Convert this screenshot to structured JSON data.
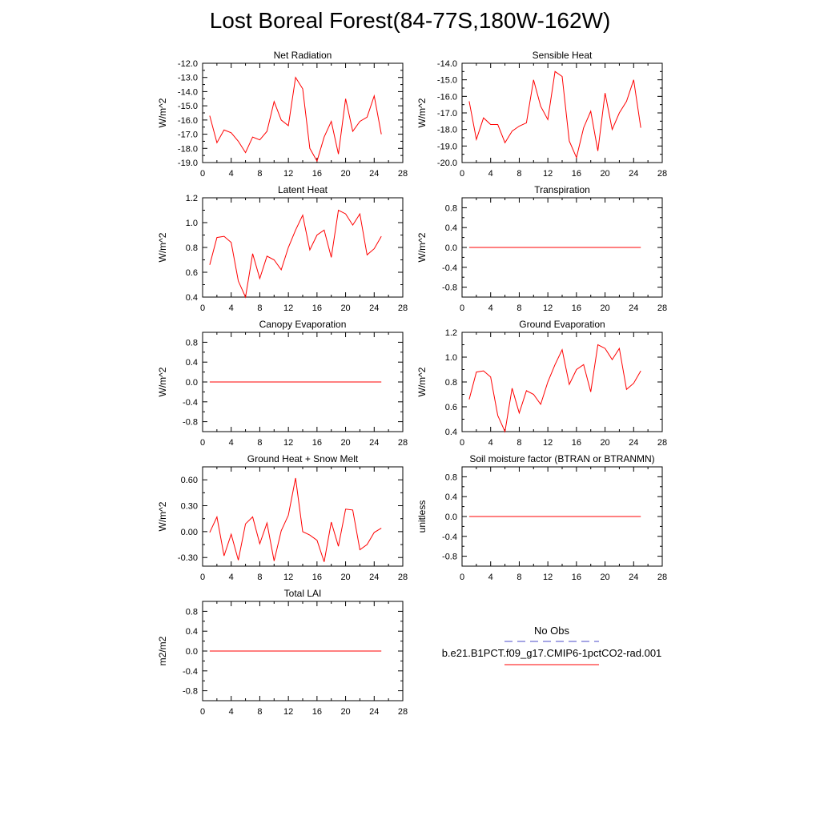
{
  "title": "Lost Boreal Forest(84-77S,180W-162W)",
  "legend": {
    "entries": [
      {
        "label": "No Obs",
        "color": "#4b4bc8",
        "style": "dashed"
      },
      {
        "label": "b.e21.B1PCT.f09_g17.CMIP6-1pctCO2-rad.001",
        "color": "#ff0000",
        "style": "solid"
      }
    ]
  },
  "chart_data": [
    {
      "type": "line",
      "title": "Net Radiation",
      "ylabel": "W/m^2",
      "xlim": [
        0,
        28
      ],
      "xticks": [
        0,
        4,
        8,
        12,
        16,
        20,
        24,
        28
      ],
      "ylim": [
        -19.0,
        -12.0
      ],
      "yticks": [
        -19.0,
        -18.0,
        -17.0,
        -16.0,
        -15.0,
        -14.0,
        -13.0,
        -12.0
      ],
      "ydec": 1,
      "series": [
        {
          "color": "#ff0000",
          "x": [
            1,
            2,
            3,
            4,
            5,
            6,
            7,
            8,
            9,
            10,
            11,
            12,
            13,
            14,
            15,
            16,
            17,
            18,
            19,
            20,
            21,
            22,
            23,
            24,
            25
          ],
          "y": [
            -15.7,
            -17.6,
            -16.7,
            -16.9,
            -17.5,
            -18.3,
            -17.2,
            -17.4,
            -16.8,
            -14.7,
            -16.0,
            -16.4,
            -13.0,
            -13.8,
            -18.0,
            -18.9,
            -17.2,
            -16.1,
            -18.4,
            -14.5,
            -16.8,
            -16.1,
            -15.8,
            -14.3,
            -17.0
          ]
        }
      ]
    },
    {
      "type": "line",
      "title": "Sensible Heat",
      "ylabel": "W/m^2",
      "xlim": [
        0,
        28
      ],
      "xticks": [
        0,
        4,
        8,
        12,
        16,
        20,
        24,
        28
      ],
      "ylim": [
        -20.0,
        -14.0
      ],
      "yticks": [
        -20.0,
        -19.0,
        -18.0,
        -17.0,
        -16.0,
        -15.0,
        -14.0
      ],
      "ydec": 1,
      "series": [
        {
          "color": "#ff0000",
          "x": [
            1,
            2,
            3,
            4,
            5,
            6,
            7,
            8,
            9,
            10,
            11,
            12,
            13,
            14,
            15,
            16,
            17,
            18,
            19,
            20,
            21,
            22,
            23,
            24,
            25
          ],
          "y": [
            -16.3,
            -18.6,
            -17.3,
            -17.7,
            -17.7,
            -18.8,
            -18.1,
            -17.8,
            -17.6,
            -15.0,
            -16.6,
            -17.4,
            -14.5,
            -14.8,
            -18.7,
            -19.7,
            -17.9,
            -16.9,
            -19.3,
            -15.8,
            -18.0,
            -17.0,
            -16.3,
            -15.0,
            -17.9
          ]
        }
      ]
    },
    {
      "type": "line",
      "title": "Latent Heat",
      "ylabel": "W/m^2",
      "xlim": [
        0,
        28
      ],
      "xticks": [
        0,
        4,
        8,
        12,
        16,
        20,
        24,
        28
      ],
      "ylim": [
        0.4,
        1.2
      ],
      "yticks": [
        0.4,
        0.6,
        0.8,
        1.0,
        1.2
      ],
      "ydec": 1,
      "series": [
        {
          "color": "#ff0000",
          "x": [
            1,
            2,
            3,
            4,
            5,
            6,
            7,
            8,
            9,
            10,
            11,
            12,
            13,
            14,
            15,
            16,
            17,
            18,
            19,
            20,
            21,
            22,
            23,
            24,
            25
          ],
          "y": [
            0.66,
            0.88,
            0.89,
            0.84,
            0.53,
            0.4,
            0.75,
            0.55,
            0.73,
            0.7,
            0.62,
            0.8,
            0.94,
            1.06,
            0.78,
            0.9,
            0.94,
            0.72,
            1.1,
            1.07,
            0.98,
            1.07,
            0.74,
            0.79,
            0.89
          ]
        }
      ]
    },
    {
      "type": "line",
      "title": "Transpiration",
      "ylabel": "W/m^2",
      "xlim": [
        0,
        28
      ],
      "xticks": [
        0,
        4,
        8,
        12,
        16,
        20,
        24,
        28
      ],
      "ylim": [
        -1.0,
        1.0
      ],
      "yticks": [
        -0.8,
        -0.4,
        0.0,
        0.4,
        0.8
      ],
      "ydec": 1,
      "series": [
        {
          "color": "#ff0000",
          "x": [
            1,
            2,
            3,
            4,
            5,
            6,
            7,
            8,
            9,
            10,
            11,
            12,
            13,
            14,
            15,
            16,
            17,
            18,
            19,
            20,
            21,
            22,
            23,
            24,
            25
          ],
          "y": [
            0,
            0,
            0,
            0,
            0,
            0,
            0,
            0,
            0,
            0,
            0,
            0,
            0,
            0,
            0,
            0,
            0,
            0,
            0,
            0,
            0,
            0,
            0,
            0,
            0
          ]
        }
      ]
    },
    {
      "type": "line",
      "title": "Canopy Evaporation",
      "ylabel": "W/m^2",
      "xlim": [
        0,
        28
      ],
      "xticks": [
        0,
        4,
        8,
        12,
        16,
        20,
        24,
        28
      ],
      "ylim": [
        -1.0,
        1.0
      ],
      "yticks": [
        -0.8,
        -0.4,
        0.0,
        0.4,
        0.8
      ],
      "ydec": 1,
      "series": [
        {
          "color": "#ff0000",
          "x": [
            1,
            2,
            3,
            4,
            5,
            6,
            7,
            8,
            9,
            10,
            11,
            12,
            13,
            14,
            15,
            16,
            17,
            18,
            19,
            20,
            21,
            22,
            23,
            24,
            25
          ],
          "y": [
            0,
            0,
            0,
            0,
            0,
            0,
            0,
            0,
            0,
            0,
            0,
            0,
            0,
            0,
            0,
            0,
            0,
            0,
            0,
            0,
            0,
            0,
            0,
            0,
            0
          ]
        }
      ]
    },
    {
      "type": "line",
      "title": "Ground Evaporation",
      "ylabel": "W/m^2",
      "xlim": [
        0,
        28
      ],
      "xticks": [
        0,
        4,
        8,
        12,
        16,
        20,
        24,
        28
      ],
      "ylim": [
        0.4,
        1.2
      ],
      "yticks": [
        0.4,
        0.6,
        0.8,
        1.0,
        1.2
      ],
      "ydec": 1,
      "series": [
        {
          "color": "#ff0000",
          "x": [
            1,
            2,
            3,
            4,
            5,
            6,
            7,
            8,
            9,
            10,
            11,
            12,
            13,
            14,
            15,
            16,
            17,
            18,
            19,
            20,
            21,
            22,
            23,
            24,
            25
          ],
          "y": [
            0.66,
            0.88,
            0.89,
            0.84,
            0.53,
            0.4,
            0.75,
            0.55,
            0.73,
            0.7,
            0.62,
            0.8,
            0.94,
            1.06,
            0.78,
            0.9,
            0.94,
            0.72,
            1.1,
            1.07,
            0.98,
            1.07,
            0.74,
            0.79,
            0.89
          ]
        }
      ]
    },
    {
      "type": "line",
      "title": "Ground Heat + Snow Melt",
      "ylabel": "W/m^2",
      "xlim": [
        0,
        28
      ],
      "xticks": [
        0,
        4,
        8,
        12,
        16,
        20,
        24,
        28
      ],
      "ylim": [
        -0.4,
        0.75
      ],
      "yticks": [
        -0.3,
        0.0,
        0.3,
        0.6
      ],
      "ydec": 2,
      "series": [
        {
          "color": "#ff0000",
          "x": [
            1,
            2,
            3,
            4,
            5,
            6,
            7,
            8,
            9,
            10,
            11,
            12,
            13,
            14,
            15,
            16,
            17,
            18,
            19,
            20,
            21,
            22,
            23,
            24,
            25
          ],
          "y": [
            -0.01,
            0.17,
            -0.28,
            -0.03,
            -0.33,
            0.09,
            0.17,
            -0.14,
            0.1,
            -0.34,
            0.01,
            0.19,
            0.62,
            0.0,
            -0.04,
            -0.1,
            -0.35,
            0.11,
            -0.17,
            0.26,
            0.25,
            -0.21,
            -0.15,
            -0.01,
            0.04
          ]
        }
      ]
    },
    {
      "type": "line",
      "title": "Soil moisture factor (BTRAN or BTRANMN)",
      "ylabel": "unitless",
      "xlim": [
        0,
        28
      ],
      "xticks": [
        0,
        4,
        8,
        12,
        16,
        20,
        24,
        28
      ],
      "ylim": [
        -1.0,
        1.0
      ],
      "yticks": [
        -0.8,
        -0.4,
        0.0,
        0.4,
        0.8
      ],
      "ydec": 1,
      "series": [
        {
          "color": "#ff0000",
          "x": [
            1,
            2,
            3,
            4,
            5,
            6,
            7,
            8,
            9,
            10,
            11,
            12,
            13,
            14,
            15,
            16,
            17,
            18,
            19,
            20,
            21,
            22,
            23,
            24,
            25
          ],
          "y": [
            0,
            0,
            0,
            0,
            0,
            0,
            0,
            0,
            0,
            0,
            0,
            0,
            0,
            0,
            0,
            0,
            0,
            0,
            0,
            0,
            0,
            0,
            0,
            0,
            0
          ]
        }
      ]
    },
    {
      "type": "line",
      "title": "Total LAI",
      "ylabel": "m2/m2",
      "xlim": [
        0,
        28
      ],
      "xticks": [
        0,
        4,
        8,
        12,
        16,
        20,
        24,
        28
      ],
      "ylim": [
        -1.0,
        1.0
      ],
      "yticks": [
        -0.8,
        -0.4,
        0.0,
        0.4,
        0.8
      ],
      "ydec": 1,
      "series": [
        {
          "color": "#ff0000",
          "x": [
            1,
            2,
            3,
            4,
            5,
            6,
            7,
            8,
            9,
            10,
            11,
            12,
            13,
            14,
            15,
            16,
            17,
            18,
            19,
            20,
            21,
            22,
            23,
            24,
            25
          ],
          "y": [
            0,
            0,
            0,
            0,
            0,
            0,
            0,
            0,
            0,
            0,
            0,
            0,
            0,
            0,
            0,
            0,
            0,
            0,
            0,
            0,
            0,
            0,
            0,
            0,
            0
          ]
        }
      ]
    }
  ]
}
